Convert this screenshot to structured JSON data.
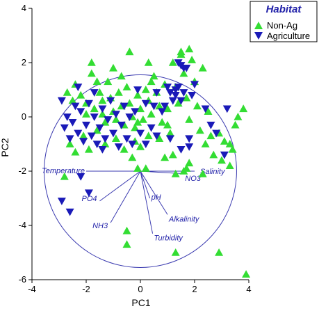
{
  "chart_data": {
    "type": "scatter",
    "xlabel": "PC1",
    "ylabel": "PC2",
    "xlim": [
      -4,
      4
    ],
    "ylim": [
      -6,
      4
    ],
    "xticks": [
      -4,
      -2,
      0,
      2,
      4
    ],
    "yticks": [
      -6,
      -4,
      -2,
      0,
      2,
      4
    ],
    "grid": false,
    "legend": {
      "title": "Habitat",
      "placement": "top-right"
    },
    "colors": {
      "Non-Ag": "#33dd33",
      "Agriculture": "#1a1ab8",
      "vectors": "#3b3bb0",
      "text": "#1f1fa8"
    },
    "series": [
      {
        "name": "Non-Ag",
        "marker": "triangle-up",
        "points": [
          [
            -2.7,
            0.9
          ],
          [
            -2.5,
            0.6
          ],
          [
            -2.4,
            1.2
          ],
          [
            -2.2,
            0.8
          ],
          [
            -2.0,
            0.5
          ],
          [
            -1.8,
            1.6
          ],
          [
            -1.7,
            0.3
          ],
          [
            -1.5,
            0.9
          ],
          [
            -1.4,
            0.1
          ],
          [
            -1.3,
            -0.2
          ],
          [
            -1.2,
            1.3
          ],
          [
            -1.1,
            0.7
          ],
          [
            -1.0,
            0.2
          ],
          [
            -0.9,
            -0.1
          ],
          [
            -0.8,
            0.9
          ],
          [
            -0.7,
            0.4
          ],
          [
            -0.6,
            -0.3
          ],
          [
            -0.5,
            1.1
          ],
          [
            -0.4,
            0.5
          ],
          [
            -0.3,
            0.0
          ],
          [
            -0.2,
            -0.4
          ],
          [
            -0.1,
            0.8
          ],
          [
            0.0,
            0.3
          ],
          [
            0.1,
            -0.1
          ],
          [
            0.2,
            1.0
          ],
          [
            0.3,
            0.6
          ],
          [
            0.4,
            0.1
          ],
          [
            0.5,
            1.5
          ],
          [
            0.6,
            0.9
          ],
          [
            0.7,
            0.4
          ],
          [
            0.8,
            -0.2
          ],
          [
            0.9,
            1.2
          ],
          [
            1.0,
            0.3
          ],
          [
            1.1,
            -0.6
          ],
          [
            1.2,
            2.0
          ],
          [
            1.3,
            1.1
          ],
          [
            1.4,
            0.5
          ],
          [
            1.5,
            2.3
          ],
          [
            1.6,
            1.6
          ],
          [
            1.7,
            0.7
          ],
          [
            1.8,
            -0.1
          ],
          [
            1.9,
            2.1
          ],
          [
            2.0,
            1.3
          ],
          [
            2.1,
            0.4
          ],
          [
            2.2,
            -0.5
          ],
          [
            2.3,
            1.8
          ],
          [
            2.4,
            -1.0
          ],
          [
            2.5,
            0.2
          ],
          [
            2.7,
            -1.4
          ],
          [
            2.9,
            -0.6
          ],
          [
            3.1,
            -0.9
          ],
          [
            3.3,
            -1.8
          ],
          [
            3.5,
            -0.3
          ],
          [
            3.6,
            0.0
          ],
          [
            3.8,
            0.3
          ],
          [
            -2.6,
            -1.0
          ],
          [
            -2.4,
            -1.3
          ],
          [
            -2.1,
            -0.7
          ],
          [
            -1.9,
            -1.2
          ],
          [
            -1.6,
            -0.5
          ],
          [
            -1.3,
            -1.0
          ],
          [
            -0.9,
            -0.8
          ],
          [
            -0.6,
            -1.2
          ],
          [
            -0.2,
            -0.9
          ],
          [
            0.3,
            -0.7
          ],
          [
            0.7,
            -0.8
          ],
          [
            1.2,
            -1.4
          ],
          [
            1.8,
            -1.7
          ],
          [
            2.3,
            -2.1
          ],
          [
            3.0,
            -1.6
          ],
          [
            -1.8,
            2.0
          ],
          [
            -1.0,
            1.8
          ],
          [
            -0.4,
            2.4
          ],
          [
            0.3,
            2.0
          ],
          [
            1.5,
            2.4
          ],
          [
            1.8,
            2.5
          ],
          [
            -2.0,
            0.1
          ],
          [
            -1.4,
            0.6
          ],
          [
            -0.7,
            1.5
          ],
          [
            0.4,
            1.3
          ],
          [
            -0.5,
            -4.2
          ],
          [
            -0.5,
            -4.7
          ],
          [
            1.3,
            -5.0
          ],
          [
            2.9,
            -5.0
          ],
          [
            3.9,
            -5.8
          ],
          [
            -0.1,
            -1.9
          ],
          [
            0.2,
            -1.9
          ],
          [
            1.3,
            -2.1
          ],
          [
            1.6,
            -2.0
          ],
          [
            1.7,
            -1.9
          ],
          [
            -2.8,
            -2.2
          ],
          [
            -0.3,
            -1.5
          ],
          [
            0.0,
            -1.1
          ],
          [
            0.9,
            -1.5
          ],
          [
            2.6,
            -0.7
          ],
          [
            3.3,
            -1.0
          ],
          [
            3.4,
            -1.2
          ],
          [
            1.0,
            -0.3
          ],
          [
            -0.1,
            -0.2
          ],
          [
            -1.6,
            1.3
          ]
        ]
      },
      {
        "name": "Agriculture",
        "marker": "triangle-down",
        "points": [
          [
            -2.9,
            0.6
          ],
          [
            -2.8,
            -0.4
          ],
          [
            -2.7,
            0.0
          ],
          [
            -2.6,
            -0.8
          ],
          [
            -2.5,
            -0.2
          ],
          [
            -2.4,
            0.4
          ],
          [
            -2.3,
            -0.6
          ],
          [
            -2.2,
            0.2
          ],
          [
            -2.1,
            -0.9
          ],
          [
            -2.0,
            -0.3
          ],
          [
            -1.9,
            0.5
          ],
          [
            -1.8,
            -0.7
          ],
          [
            -1.7,
            0.0
          ],
          [
            -1.6,
            -1.0
          ],
          [
            -1.5,
            -0.4
          ],
          [
            -1.4,
            0.3
          ],
          [
            -1.3,
            -0.8
          ],
          [
            -1.2,
            -0.1
          ],
          [
            -1.1,
            0.6
          ],
          [
            -1.0,
            -0.6
          ],
          [
            -0.9,
            0.1
          ],
          [
            -0.8,
            -1.1
          ],
          [
            -0.7,
            -0.3
          ],
          [
            -0.6,
            0.4
          ],
          [
            -0.5,
            -0.8
          ],
          [
            -0.4,
            0.0
          ],
          [
            -0.3,
            -1.0
          ],
          [
            -0.2,
            0.2
          ],
          [
            0.0,
            -0.6
          ],
          [
            0.2,
            0.5
          ],
          [
            0.4,
            -0.4
          ],
          [
            0.6,
            0.9
          ],
          [
            0.8,
            0.2
          ],
          [
            1.0,
            1.1
          ],
          [
            1.1,
            0.9
          ],
          [
            1.2,
            0.6
          ],
          [
            1.3,
            0.8
          ],
          [
            1.4,
            1.1
          ],
          [
            1.5,
            0.6
          ],
          [
            1.6,
            0.9
          ],
          [
            1.4,
            2.0
          ],
          [
            1.5,
            1.9
          ],
          [
            1.6,
            1.8
          ],
          [
            1.7,
            1.8
          ],
          [
            1.3,
            1.0
          ],
          [
            1.5,
            -1.2
          ],
          [
            1.8,
            -1.1
          ],
          [
            2.4,
            0.3
          ],
          [
            2.6,
            -0.3
          ],
          [
            2.8,
            -0.6
          ],
          [
            3.1,
            -1.4
          ],
          [
            3.2,
            0.3
          ],
          [
            -2.9,
            -3.1
          ],
          [
            -2.6,
            -3.5
          ],
          [
            -2.2,
            -2.2
          ],
          [
            -1.9,
            -2.8
          ],
          [
            1.8,
            -0.8
          ],
          [
            0.9,
            0.4
          ],
          [
            0.6,
            -0.7
          ],
          [
            -1.4,
            -1.2
          ],
          [
            -0.1,
            1.0
          ],
          [
            0.5,
            0.4
          ],
          [
            1.1,
            -0.8
          ],
          [
            -2.3,
            1.1
          ],
          [
            -1.7,
            0.9
          ],
          [
            0.2,
            -1.0
          ],
          [
            2.0,
            1.2
          ],
          [
            1.9,
            0.8
          ]
        ]
      }
    ],
    "vectors": [
      {
        "label": "Temperature",
        "x": -2.0,
        "y": -2.0
      },
      {
        "label": "Salinity",
        "x": 2.0,
        "y": -2.0
      },
      {
        "label": "NO3",
        "x": 1.7,
        "y": -2.1
      },
      {
        "label": "PO4",
        "x": -1.5,
        "y": -3.1
      },
      {
        "label": "pH",
        "x": 0.35,
        "y": -3.0
      },
      {
        "label": "Alkalinity",
        "x": 1.0,
        "y": -3.6
      },
      {
        "label": "NH3",
        "x": -1.1,
        "y": -3.9
      },
      {
        "label": "Turbidity",
        "x": 0.45,
        "y": -4.3
      }
    ],
    "circle_radius": 3.55
  }
}
